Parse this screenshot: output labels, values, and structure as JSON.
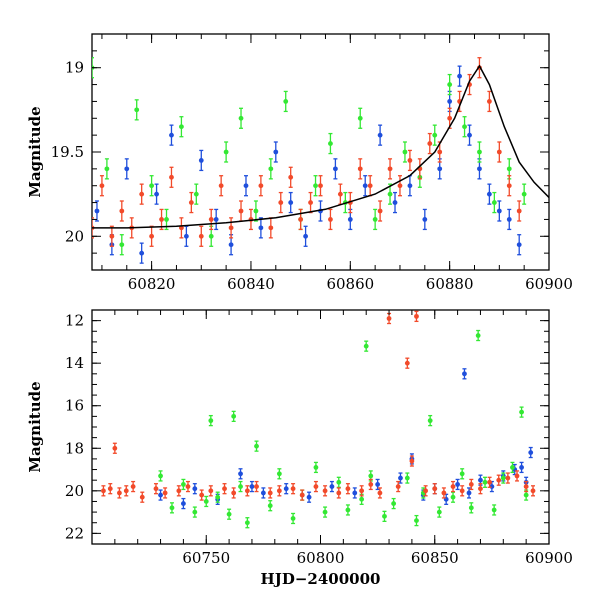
{
  "chart_data": [
    {
      "type": "scatter",
      "title": "",
      "xlabel": "",
      "ylabel": "Magnitude",
      "xlim": [
        60808,
        60900
      ],
      "ylim": [
        20.2,
        18.8
      ],
      "y_inverted": true,
      "grid": false,
      "x_ticks": [
        "60820",
        "60840",
        "60860",
        "60880",
        "60900"
      ],
      "y_ticks": [
        "19",
        "19.5",
        "20"
      ],
      "error_bars": true,
      "model_curve": {
        "color": "#000000",
        "x": [
          60808,
          60815,
          60825,
          60835,
          60845,
          60855,
          60865,
          60872,
          60877,
          60881,
          60884,
          60886,
          60888,
          60891,
          60894,
          60897,
          60900
        ],
        "y": [
          19.95,
          19.95,
          19.94,
          19.92,
          19.89,
          19.84,
          19.75,
          19.64,
          19.5,
          19.3,
          19.08,
          18.99,
          19.1,
          19.35,
          19.56,
          19.68,
          19.77
        ]
      },
      "series": [
        {
          "color": "#1f4fdc",
          "x": [
            60809,
            60812,
            60815,
            60818,
            60821,
            60824,
            60827,
            60830,
            60833,
            60836,
            60839,
            60842,
            60845,
            60848,
            60851,
            60854,
            60857,
            60860,
            60863,
            60866,
            60869,
            60872,
            60875,
            60878,
            60880,
            60882,
            60884,
            60886,
            60888,
            60890,
            60892,
            60894
          ],
          "y": [
            19.85,
            20.05,
            19.6,
            20.1,
            19.75,
            19.4,
            20.0,
            19.55,
            19.9,
            20.05,
            19.7,
            19.95,
            19.5,
            19.8,
            20.0,
            19.85,
            19.6,
            19.9,
            19.7,
            19.4,
            19.8,
            19.7,
            19.9,
            19.6,
            19.2,
            19.05,
            19.4,
            19.6,
            19.75,
            19.85,
            19.9,
            20.05
          ]
        },
        {
          "color": "#33e833",
          "x": [
            60808,
            60811,
            60814,
            60817,
            60820,
            60823,
            60826,
            60829,
            60832,
            60835,
            60838,
            60841,
            60844,
            60847,
            60850,
            60853,
            60856,
            60859,
            60862,
            60865,
            60868,
            60871,
            60874,
            60877,
            60880,
            60883,
            60886,
            60889,
            60892,
            60895
          ],
          "y": [
            19.0,
            19.6,
            20.05,
            19.25,
            19.7,
            19.9,
            19.35,
            19.75,
            20.0,
            19.5,
            19.3,
            19.85,
            19.6,
            19.2,
            19.9,
            19.7,
            19.45,
            19.8,
            19.3,
            19.9,
            19.75,
            19.5,
            19.65,
            19.4,
            19.1,
            19.35,
            19.5,
            19.8,
            19.6,
            19.75
          ]
        },
        {
          "color": "#f24a2a",
          "x": [
            60808,
            60810,
            60812,
            60814,
            60816,
            60818,
            60820,
            60822,
            60824,
            60826,
            60828,
            60830,
            60832,
            60834,
            60836,
            60838,
            60840,
            60842,
            60844,
            60846,
            60848,
            60850,
            60852,
            60854,
            60856,
            60858,
            60860,
            60862,
            60864,
            60866,
            60868,
            60870,
            60872,
            60874,
            60876,
            60878,
            60880,
            60882,
            60884,
            60886,
            60888,
            60890,
            60892,
            60894
          ],
          "y": [
            19.95,
            19.7,
            20.0,
            19.85,
            19.95,
            19.75,
            20.0,
            19.9,
            19.65,
            19.95,
            19.8,
            20.0,
            19.9,
            19.7,
            19.95,
            19.85,
            19.9,
            19.7,
            19.95,
            19.8,
            19.65,
            19.9,
            19.8,
            19.7,
            19.9,
            19.75,
            19.8,
            19.6,
            19.7,
            19.85,
            19.6,
            19.7,
            19.55,
            19.6,
            19.45,
            19.5,
            19.3,
            19.2,
            19.1,
            19.0,
            19.2,
            19.5,
            19.7,
            19.85
          ]
        }
      ]
    },
    {
      "type": "scatter",
      "title": "",
      "xlabel": "HJD−2400000",
      "ylabel": "Magnitude",
      "xlim": [
        60700,
        60900
      ],
      "ylim": [
        22.5,
        11.5
      ],
      "y_inverted": true,
      "grid": false,
      "x_ticks": [
        "60750",
        "60800",
        "60850",
        "60900"
      ],
      "y_ticks": [
        "12",
        "14",
        "16",
        "18",
        "20",
        "22"
      ],
      "error_bars": true,
      "series": [
        {
          "color": "#1f4fdc",
          "x": [
            60730,
            60740,
            60745,
            60755,
            60765,
            60770,
            60775,
            60785,
            60795,
            60805,
            60815,
            60825,
            60835,
            60840,
            60845,
            60850,
            60855,
            60860,
            60863,
            60865,
            60870,
            60875,
            60880,
            60885,
            60888,
            60890,
            60892
          ],
          "y": [
            20.2,
            20.6,
            19.9,
            20.4,
            19.2,
            19.8,
            20.1,
            19.9,
            20.3,
            19.8,
            20.1,
            19.7,
            19.4,
            18.5,
            20.2,
            19.9,
            20.4,
            19.7,
            14.5,
            20.1,
            19.5,
            19.8,
            19.3,
            19.0,
            18.9,
            19.6,
            18.2
          ]
        },
        {
          "color": "#33e833",
          "x": [
            60730,
            60735,
            60740,
            60745,
            60750,
            60752,
            60755,
            60760,
            60762,
            60765,
            60768,
            60772,
            60778,
            60782,
            60788,
            60792,
            60798,
            60802,
            60808,
            60812,
            60818,
            60820,
            60822,
            60828,
            60832,
            60838,
            60842,
            60845,
            60848,
            60852,
            60858,
            60862,
            60866,
            60869,
            60872,
            60876,
            60880,
            60884,
            60888,
            60890
          ],
          "y": [
            19.3,
            20.8,
            19.7,
            21.0,
            20.5,
            16.7,
            20.3,
            21.1,
            16.5,
            19.8,
            21.5,
            17.9,
            20.7,
            19.2,
            21.3,
            20.2,
            18.9,
            21.0,
            19.6,
            20.9,
            20.4,
            13.2,
            19.3,
            21.2,
            20.6,
            19.4,
            21.4,
            20.1,
            16.7,
            21.0,
            20.3,
            19.2,
            20.8,
            12.7,
            19.6,
            20.9,
            19.4,
            18.9,
            16.3,
            20.2
          ]
        },
        {
          "color": "#f24a2a",
          "x": [
            60705,
            60708,
            60710,
            60712,
            60715,
            60718,
            60722,
            60728,
            60732,
            60738,
            60742,
            60748,
            60752,
            60758,
            60762,
            60768,
            60772,
            60778,
            60782,
            60788,
            60792,
            60798,
            60802,
            60808,
            60812,
            60818,
            60822,
            60826,
            60830,
            60834,
            60838,
            60840,
            60842,
            60846,
            60850,
            60854,
            60858,
            60862,
            60866,
            60870,
            60874,
            60878,
            60882,
            60886,
            60890,
            60893
          ],
          "y": [
            20.0,
            19.9,
            18.0,
            20.1,
            20.0,
            19.8,
            20.3,
            19.9,
            20.1,
            20.0,
            19.8,
            20.2,
            20.0,
            19.9,
            20.1,
            20.0,
            19.8,
            20.1,
            20.0,
            19.9,
            20.2,
            19.8,
            20.0,
            20.1,
            19.9,
            20.0,
            19.7,
            20.1,
            11.9,
            19.8,
            14.0,
            18.6,
            11.8,
            20.0,
            19.9,
            20.1,
            19.8,
            20.0,
            19.7,
            19.9,
            19.6,
            19.5,
            19.4,
            19.3,
            19.8,
            20.0
          ]
        }
      ]
    }
  ]
}
